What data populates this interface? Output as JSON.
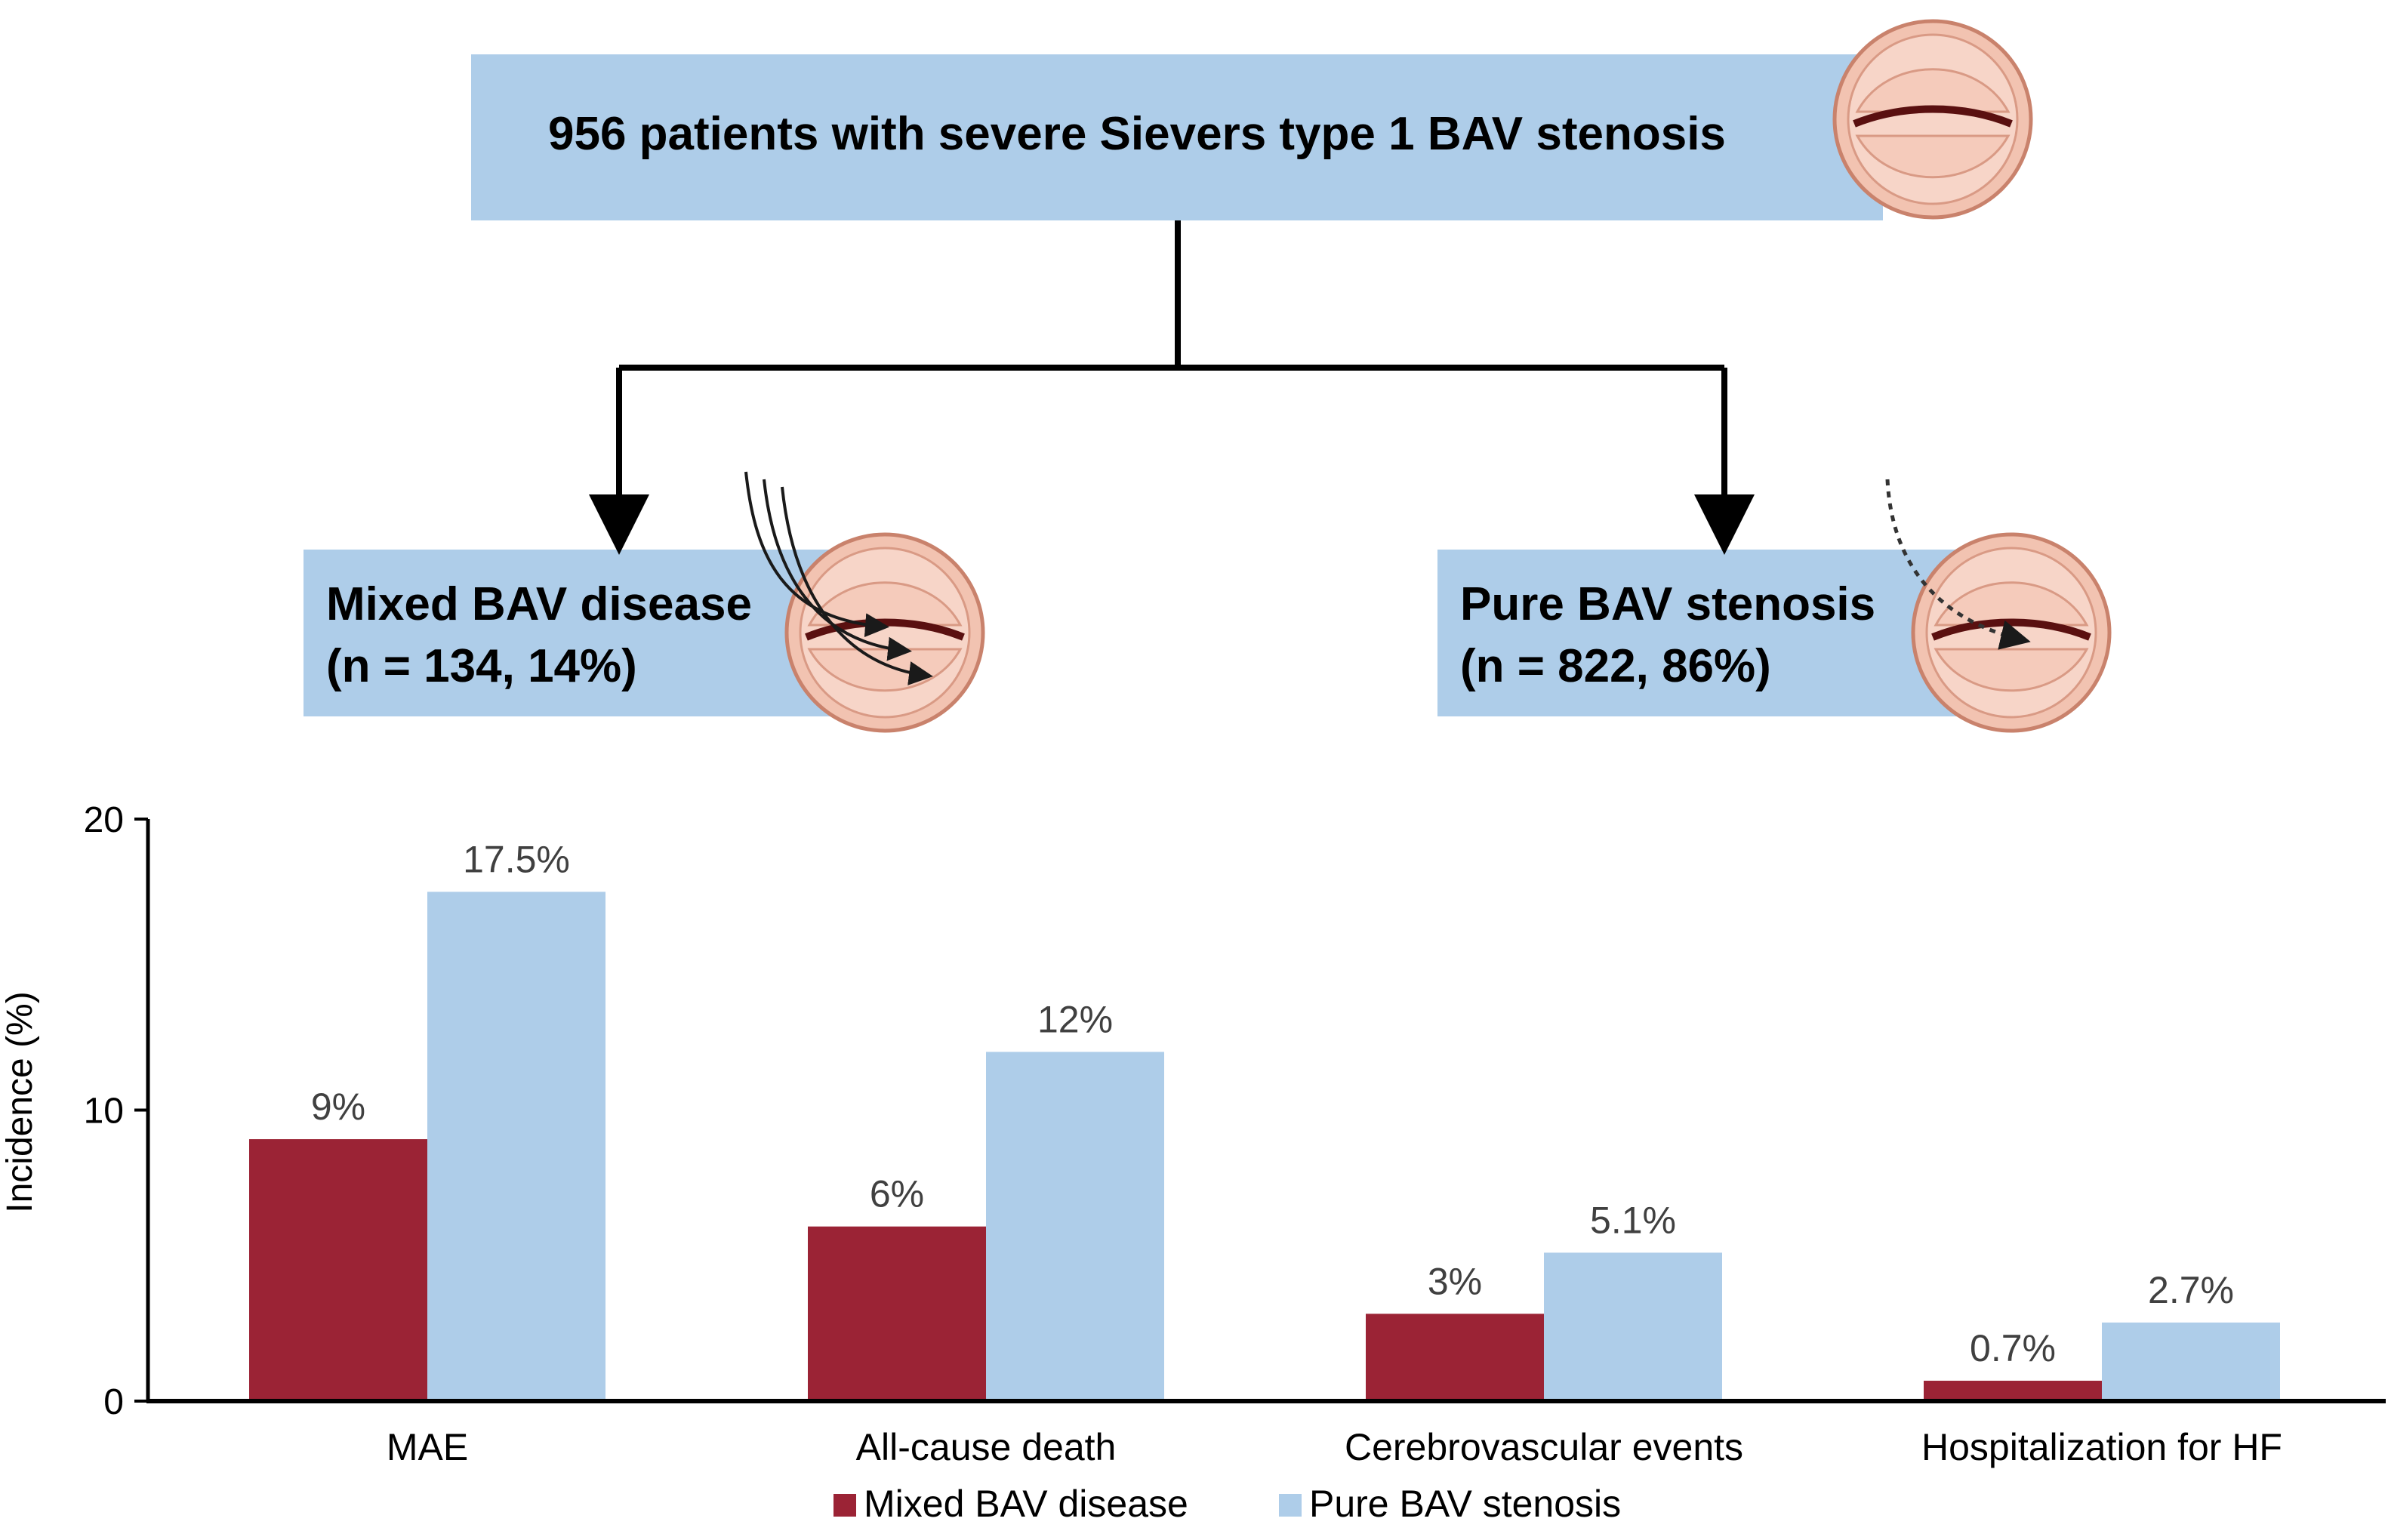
{
  "flow": {
    "top_box": "956 patients with severe Sievers type 1 BAV stenosis",
    "mixed": {
      "title": "Mixed BAV disease",
      "count": "(n = 134, 14%)"
    },
    "pure": {
      "title": "Pure BAV stenosis",
      "count": "(n = 822, 86%)"
    },
    "icons": [
      "aortic-valve-icon",
      "regurgitation-arrows-icon",
      "dotted-arrow-icon"
    ]
  },
  "colors": {
    "box_fill": "#aecde9",
    "mixed_bar": "#9b2335",
    "pure_bar": "#aecde9",
    "valve_fill": "#f2c3b1",
    "valve_edge": "#c9826c"
  },
  "chart_data": {
    "type": "bar",
    "categories": [
      "MAE",
      "All-cause death",
      "Cerebrovascular events",
      "Hospitalization for HF"
    ],
    "series": [
      {
        "name": "Mixed BAV disease",
        "values": [
          9,
          6,
          3,
          0.7
        ],
        "labels": [
          "9%",
          "6%",
          "3%",
          "0.7%"
        ],
        "color": "#9b2335"
      },
      {
        "name": "Pure BAV stenosis",
        "values": [
          17.5,
          12,
          5.1,
          2.7
        ],
        "labels": [
          "17.5%",
          "12%",
          "5.1%",
          "2.7%"
        ],
        "color": "#aecde9"
      }
    ],
    "ylabel": "Incidence (%)",
    "xlabel": "",
    "ylim": [
      0,
      20
    ],
    "yticks": [
      0,
      10,
      20
    ],
    "grid": false,
    "legend": "bottom-center"
  }
}
